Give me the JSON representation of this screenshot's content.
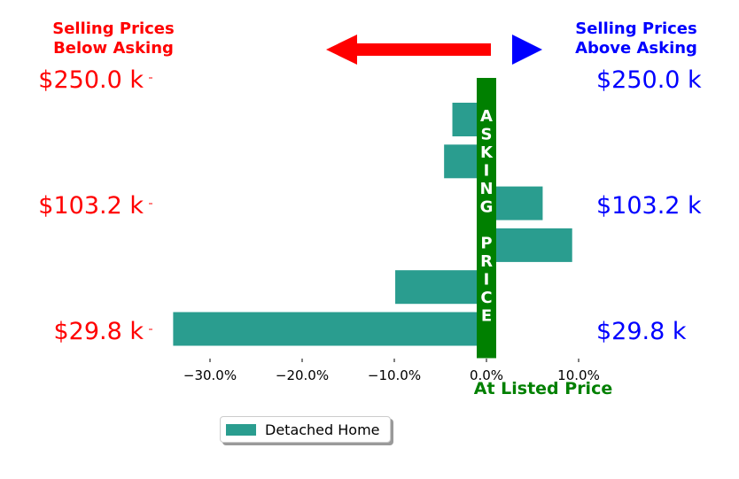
{
  "header": {
    "left_line1": "Selling Prices",
    "left_line2": "Below Asking",
    "right_line1": "Selling Prices",
    "right_line2": "Above Asking"
  },
  "center_label": "ASKING PRICE",
  "center_label_letters": [
    "A",
    "S",
    "K",
    "I",
    "N",
    "G",
    "",
    "P",
    "R",
    "I",
    "C",
    "E"
  ],
  "bottom_label": "At Listed Price",
  "left_price_labels": [
    "$250.0 k",
    "$103.2 k",
    "$29.8 k"
  ],
  "right_price_labels": [
    "$250.0 k",
    "$103.2 k",
    "$29.8 k"
  ],
  "colors": {
    "below": "#ff0000",
    "above": "#0000ff",
    "bar": "#2a9d8f",
    "center": "#008000"
  },
  "legend": {
    "label": "Detached Home"
  },
  "chart_data": {
    "type": "bar",
    "orientation": "horizontal",
    "series": [
      {
        "name": "Detached Home",
        "values": [
          -3.7,
          -4.6,
          6.1,
          9.3,
          -9.9,
          -34.0
        ]
      }
    ],
    "x_ticks": [
      -30,
      -20,
      -10,
      0,
      10
    ],
    "x_tick_labels": [
      "−30.0%",
      "−20.0%",
      "−10.0%",
      "0.0%",
      "10.0%"
    ],
    "xlim": [
      -34.5,
      10.5
    ],
    "grid": false
  }
}
